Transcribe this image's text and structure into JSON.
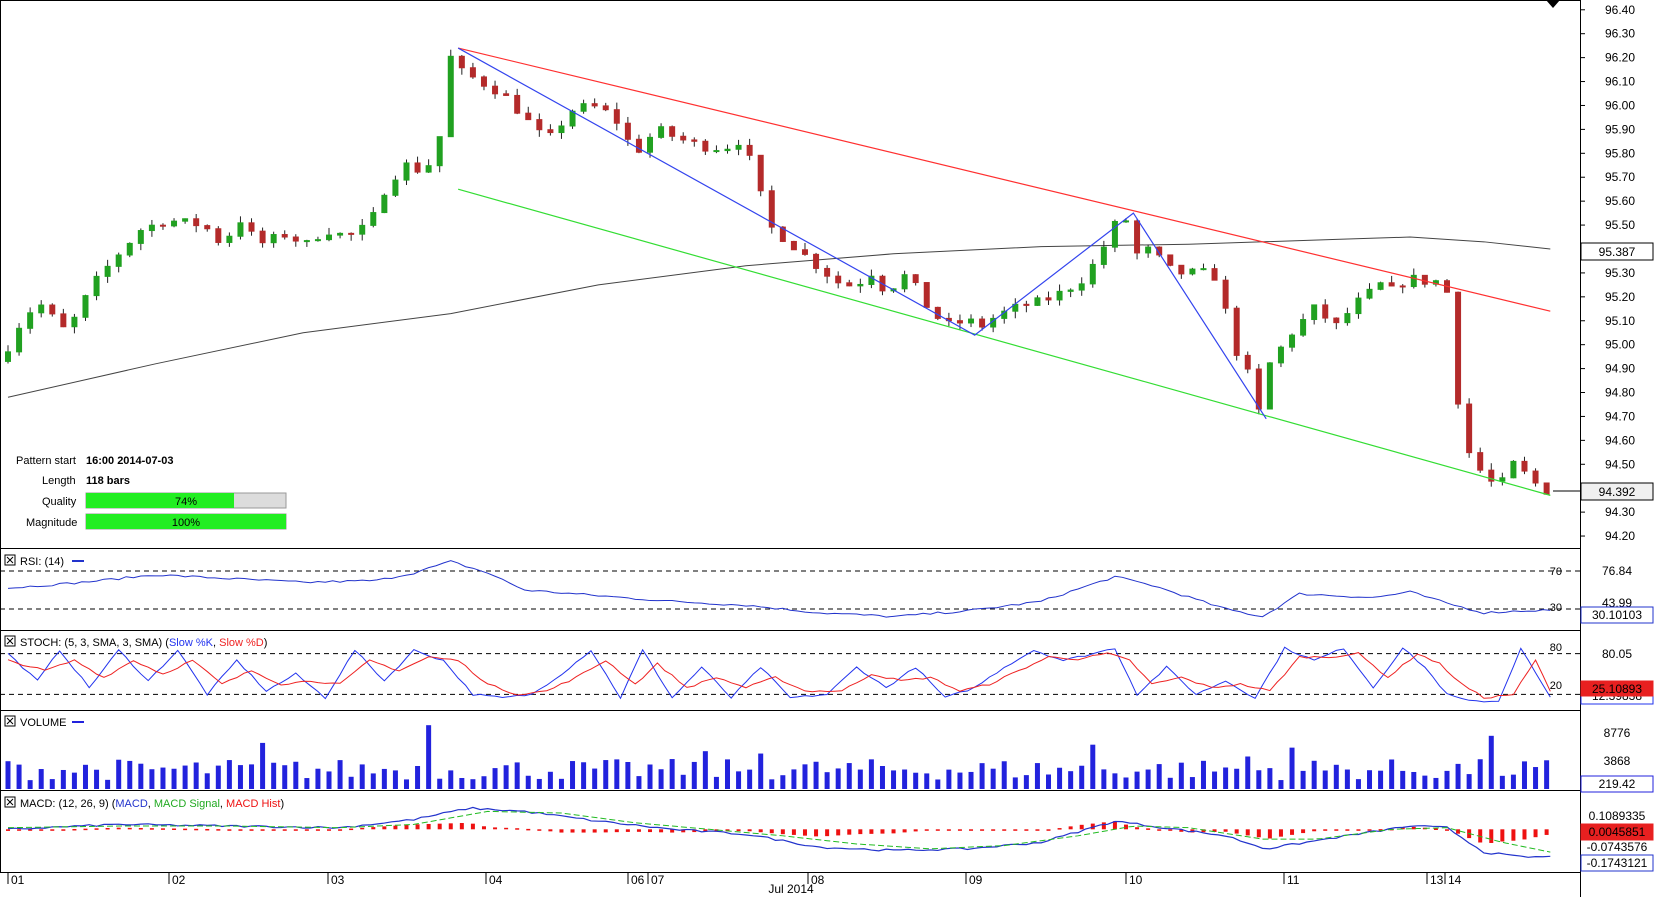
{
  "pattern_info": {
    "start_label": "Pattern start",
    "start_value": "16:00 2014-07-03",
    "length_label": "Length",
    "length_value": "118 bars",
    "quality_label": "Quality",
    "quality_value": "74%",
    "quality_fraction": 0.74,
    "magnitude_label": "Magnitude",
    "magnitude_value": "100%",
    "magnitude_fraction": 1.0
  },
  "colors": {
    "bull": "#21a121",
    "bear": "#b42a2a",
    "resistance": "#ff3030",
    "support": "#33dd33",
    "zigzag": "#3344ee",
    "ma": "#444444",
    "rsi": "#2233cc",
    "stoch_k": "#2233ee",
    "stoch_d": "#ee2222",
    "volume": "#2222dd",
    "macd": "#2233cc",
    "macd_signal": "#22bb22",
    "macd_hist": "#ee1111"
  },
  "chart_data": {
    "type": "candlestick",
    "title": "",
    "y_ticks": [
      "96.40",
      "96.30",
      "96.20",
      "96.10",
      "96.00",
      "95.90",
      "95.80",
      "95.70",
      "95.60",
      "95.50",
      "95.40",
      "95.30",
      "95.20",
      "95.10",
      "95.00",
      "94.90",
      "94.80",
      "94.70",
      "94.60",
      "94.50",
      "94.40",
      "94.30",
      "94.20"
    ],
    "ylim": [
      94.15,
      96.42
    ],
    "current_price": "94.392",
    "current_price_value": 94.392,
    "ma_price": "95.387",
    "ma_price_value": 95.387,
    "x_labels": [
      "01",
      "02",
      "03",
      "04",
      "06",
      "07",
      "08",
      "09",
      "10",
      "11",
      "13",
      "14"
    ],
    "x_month_label": "Jul 2014",
    "price_path": [
      [
        0,
        94.93
      ],
      [
        5,
        95.08
      ],
      [
        10,
        95.18
      ],
      [
        15,
        95.1
      ],
      [
        18,
        95.05
      ],
      [
        25,
        95.25
      ],
      [
        32,
        95.38
      ],
      [
        38,
        95.48
      ],
      [
        45,
        95.52
      ],
      [
        55,
        95.5
      ],
      [
        60,
        95.42
      ],
      [
        65,
        95.52
      ],
      [
        70,
        95.42
      ],
      [
        77,
        95.46
      ],
      [
        83,
        95.42
      ],
      [
        88,
        95.48
      ],
      [
        94,
        95.45
      ],
      [
        100,
        95.5
      ],
      [
        105,
        95.68
      ],
      [
        110,
        95.75
      ],
      [
        115,
        95.72
      ],
      [
        118,
        95.82
      ],
      [
        120,
        95.92
      ],
      [
        122,
        96.2
      ],
      [
        124,
        96.15
      ],
      [
        130,
        96.1
      ],
      [
        136,
        96.05
      ],
      [
        142,
        95.95
      ],
      [
        148,
        95.85
      ],
      [
        155,
        95.98
      ],
      [
        160,
        96.0
      ],
      [
        166,
        95.96
      ],
      [
        172,
        95.8
      ],
      [
        178,
        95.9
      ],
      [
        184,
        95.86
      ],
      [
        190,
        95.83
      ],
      [
        196,
        95.82
      ],
      [
        200,
        95.85
      ],
      [
        204,
        95.75
      ],
      [
        208,
        95.5
      ],
      [
        212,
        95.45
      ],
      [
        216,
        95.4
      ],
      [
        222,
        95.32
      ],
      [
        228,
        95.25
      ],
      [
        232,
        95.25
      ],
      [
        236,
        95.3
      ],
      [
        240,
        95.22
      ],
      [
        246,
        95.3
      ],
      [
        250,
        95.18
      ],
      [
        256,
        95.08
      ],
      [
        262,
        95.1
      ],
      [
        266,
        95.08
      ],
      [
        270,
        95.12
      ],
      [
        276,
        95.16
      ],
      [
        282,
        95.18
      ],
      [
        288,
        95.22
      ],
      [
        294,
        95.28
      ],
      [
        298,
        95.38
      ],
      [
        302,
        95.5
      ],
      [
        305,
        95.52
      ],
      [
        308,
        95.38
      ],
      [
        312,
        95.4
      ],
      [
        316,
        95.32
      ],
      [
        320,
        95.3
      ],
      [
        326,
        95.3
      ],
      [
        330,
        95.28
      ],
      [
        334,
        95.0
      ],
      [
        338,
        94.88
      ],
      [
        341,
        94.72
      ],
      [
        344,
        94.92
      ],
      [
        350,
        95.05
      ],
      [
        356,
        95.15
      ],
      [
        362,
        95.08
      ],
      [
        368,
        95.18
      ],
      [
        374,
        95.25
      ],
      [
        378,
        95.22
      ],
      [
        382,
        95.3
      ],
      [
        384,
        95.25
      ],
      [
        388,
        95.28
      ],
      [
        392,
        95.22
      ],
      [
        396,
        94.62
      ],
      [
        398,
        94.55
      ],
      [
        402,
        94.45
      ],
      [
        406,
        94.4
      ],
      [
        410,
        94.5
      ],
      [
        414,
        94.45
      ],
      [
        418,
        94.39
      ]
    ],
    "n_bars": 420,
    "lines": {
      "resistance": {
        "x": [
          122,
          418
        ],
        "y": [
          96.24,
          95.14
        ]
      },
      "support": {
        "x": [
          122,
          418
        ],
        "y": [
          95.65,
          94.37
        ]
      },
      "zigzag": {
        "x": [
          122,
          262,
          305,
          341
        ],
        "y": [
          96.24,
          95.04,
          95.55,
          94.69
        ]
      },
      "ma": {
        "x": [
          0,
          40,
          80,
          120,
          160,
          200,
          240,
          280,
          320,
          360,
          380,
          400,
          418
        ],
        "y": [
          94.78,
          94.92,
          95.05,
          95.13,
          95.25,
          95.33,
          95.38,
          95.41,
          95.42,
          95.44,
          95.45,
          95.43,
          95.4
        ]
      }
    },
    "indicators": {
      "rsi": {
        "label": "RSI: (14)",
        "levels": [
          "70",
          "30"
        ],
        "level_values": [
          70,
          30
        ],
        "scale_label": "76.84",
        "mid_label": "43.99",
        "value": "30.10103",
        "ylim": [
          10,
          90
        ],
        "path": [
          [
            0,
            52
          ],
          [
            20,
            58
          ],
          [
            40,
            66
          ],
          [
            60,
            62
          ],
          [
            80,
            58
          ],
          [
            100,
            60
          ],
          [
            110,
            68
          ],
          [
            120,
            80
          ],
          [
            130,
            68
          ],
          [
            140,
            50
          ],
          [
            160,
            44
          ],
          [
            180,
            38
          ],
          [
            200,
            34
          ],
          [
            220,
            26
          ],
          [
            240,
            22
          ],
          [
            260,
            28
          ],
          [
            280,
            38
          ],
          [
            300,
            64
          ],
          [
            310,
            55
          ],
          [
            330,
            30
          ],
          [
            340,
            22
          ],
          [
            350,
            46
          ],
          [
            370,
            42
          ],
          [
            380,
            48
          ],
          [
            390,
            36
          ],
          [
            400,
            26
          ],
          [
            410,
            28
          ],
          [
            418,
            29
          ]
        ]
      },
      "stoch": {
        "label": "STOCH: (5, 3, SMA, 3, SMA)",
        "k_label": "Slow %K",
        "d_label": "Slow %D",
        "levels": [
          "80",
          "20"
        ],
        "level_values": [
          80,
          20
        ],
        "scale_label": "80.05",
        "value_d": "25.10893",
        "value_k": "12.39838",
        "ylim": [
          0,
          100
        ],
        "k_path": [
          [
            0,
            80
          ],
          [
            8,
            40
          ],
          [
            14,
            85
          ],
          [
            22,
            30
          ],
          [
            30,
            85
          ],
          [
            38,
            40
          ],
          [
            46,
            85
          ],
          [
            54,
            20
          ],
          [
            62,
            70
          ],
          [
            70,
            25
          ],
          [
            78,
            50
          ],
          [
            86,
            15
          ],
          [
            94,
            85
          ],
          [
            102,
            40
          ],
          [
            110,
            85
          ],
          [
            118,
            70
          ],
          [
            126,
            20
          ],
          [
            134,
            15
          ],
          [
            142,
            20
          ],
          [
            150,
            50
          ],
          [
            158,
            85
          ],
          [
            166,
            15
          ],
          [
            172,
            85
          ],
          [
            180,
            15
          ],
          [
            188,
            60
          ],
          [
            196,
            15
          ],
          [
            204,
            60
          ],
          [
            212,
            15
          ],
          [
            222,
            20
          ],
          [
            230,
            60
          ],
          [
            238,
            30
          ],
          [
            246,
            60
          ],
          [
            254,
            15
          ],
          [
            262,
            30
          ],
          [
            270,
            60
          ],
          [
            278,
            85
          ],
          [
            286,
            70
          ],
          [
            294,
            80
          ],
          [
            300,
            88
          ],
          [
            306,
            20
          ],
          [
            314,
            60
          ],
          [
            322,
            20
          ],
          [
            330,
            40
          ],
          [
            338,
            15
          ],
          [
            346,
            88
          ],
          [
            354,
            70
          ],
          [
            362,
            88
          ],
          [
            370,
            30
          ],
          [
            378,
            88
          ],
          [
            384,
            60
          ],
          [
            390,
            20
          ],
          [
            396,
            10
          ],
          [
            404,
            10
          ],
          [
            410,
            88
          ],
          [
            418,
            15
          ]
        ],
        "d_path": [
          [
            0,
            70
          ],
          [
            10,
            55
          ],
          [
            18,
            70
          ],
          [
            26,
            45
          ],
          [
            34,
            70
          ],
          [
            42,
            50
          ],
          [
            50,
            70
          ],
          [
            58,
            35
          ],
          [
            66,
            55
          ],
          [
            74,
            35
          ],
          [
            82,
            40
          ],
          [
            90,
            35
          ],
          [
            98,
            70
          ],
          [
            106,
            55
          ],
          [
            114,
            75
          ],
          [
            122,
            70
          ],
          [
            130,
            35
          ],
          [
            138,
            20
          ],
          [
            146,
            25
          ],
          [
            154,
            45
          ],
          [
            162,
            70
          ],
          [
            170,
            35
          ],
          [
            176,
            65
          ],
          [
            184,
            30
          ],
          [
            192,
            45
          ],
          [
            200,
            30
          ],
          [
            208,
            45
          ],
          [
            216,
            25
          ],
          [
            226,
            25
          ],
          [
            234,
            50
          ],
          [
            242,
            40
          ],
          [
            250,
            45
          ],
          [
            258,
            25
          ],
          [
            266,
            35
          ],
          [
            274,
            55
          ],
          [
            282,
            75
          ],
          [
            290,
            72
          ],
          [
            298,
            80
          ],
          [
            304,
            70
          ],
          [
            310,
            35
          ],
          [
            318,
            45
          ],
          [
            326,
            30
          ],
          [
            334,
            35
          ],
          [
            342,
            25
          ],
          [
            350,
            75
          ],
          [
            358,
            75
          ],
          [
            366,
            80
          ],
          [
            374,
            45
          ],
          [
            382,
            80
          ],
          [
            388,
            65
          ],
          [
            394,
            35
          ],
          [
            400,
            15
          ],
          [
            408,
            20
          ],
          [
            414,
            70
          ],
          [
            418,
            25
          ]
        ]
      },
      "volume": {
        "label": "VOLUME",
        "scale_top": "8776",
        "scale_mid": "3868",
        "value": "219.42",
        "ymax": 11000,
        "spikes": [
          [
            115,
            10800
          ],
          [
            70,
            7800
          ],
          [
            403,
            9000
          ],
          [
            350,
            7000
          ],
          [
            296,
            7500
          ],
          [
            190,
            6400
          ],
          [
            206,
            6000
          ],
          [
            338,
            5500
          ]
        ]
      },
      "macd": {
        "label": "MACD: (12, 26, 9)",
        "macd_label": "MACD",
        "signal_label": "MACD Signal",
        "hist_label": "MACD Hist",
        "scale_top": "0.1089335",
        "value_hist": "0.0045851",
        "scale_low": "-0.0743576",
        "value_macd": "-0.1743121",
        "ylim": [
          -0.25,
          0.18
        ],
        "macd_path": [
          [
            0,
            0.0
          ],
          [
            30,
            0.03
          ],
          [
            60,
            0.02
          ],
          [
            90,
            0.01
          ],
          [
            110,
            0.06
          ],
          [
            125,
            0.13
          ],
          [
            140,
            0.11
          ],
          [
            160,
            0.05
          ],
          [
            180,
            0.0
          ],
          [
            200,
            -0.03
          ],
          [
            220,
            -0.11
          ],
          [
            240,
            -0.13
          ],
          [
            260,
            -0.12
          ],
          [
            280,
            -0.08
          ],
          [
            300,
            0.05
          ],
          [
            310,
            0.02
          ],
          [
            330,
            -0.04
          ],
          [
            341,
            -0.12
          ],
          [
            360,
            -0.05
          ],
          [
            380,
            0.02
          ],
          [
            390,
            0.01
          ],
          [
            400,
            -0.14
          ],
          [
            410,
            -0.17
          ],
          [
            418,
            -0.17
          ]
        ],
        "signal_path": [
          [
            0,
            0.01
          ],
          [
            30,
            0.02
          ],
          [
            60,
            0.02
          ],
          [
            90,
            0.01
          ],
          [
            110,
            0.03
          ],
          [
            130,
            0.11
          ],
          [
            150,
            0.1
          ],
          [
            170,
            0.04
          ],
          [
            190,
            0.0
          ],
          [
            210,
            -0.04
          ],
          [
            230,
            -0.09
          ],
          [
            250,
            -0.12
          ],
          [
            270,
            -0.1
          ],
          [
            290,
            -0.04
          ],
          [
            305,
            0.02
          ],
          [
            320,
            0.01
          ],
          [
            340,
            -0.06
          ],
          [
            355,
            -0.06
          ],
          [
            375,
            -0.0
          ],
          [
            390,
            0.01
          ],
          [
            405,
            -0.08
          ],
          [
            418,
            -0.14
          ]
        ]
      }
    }
  }
}
